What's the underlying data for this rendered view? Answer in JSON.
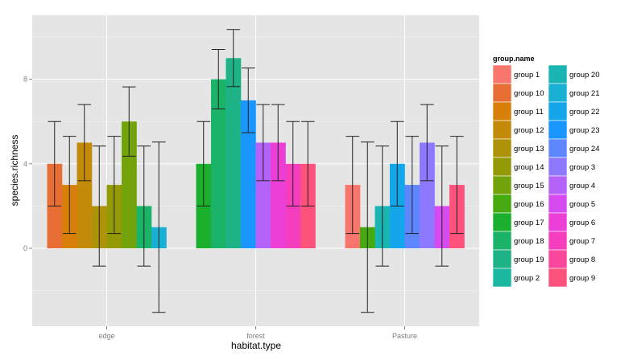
{
  "chart_data": {
    "type": "bar",
    "subtype": "dodged-bar-with-errorbars",
    "title": "",
    "xlabel": "habitat.type",
    "ylabel": "species.richness",
    "ylim": [
      -3.8,
      10.9
    ],
    "yticks": [
      0,
      4,
      8
    ],
    "ytick_labels": [
      "0",
      "4",
      "8"
    ],
    "categories": [
      "edge",
      "forest",
      "Pasture"
    ],
    "grid": true,
    "legend": {
      "title": "group.name",
      "position": "right",
      "entries": [
        {
          "label": "group 1",
          "color": "#F8766D"
        },
        {
          "label": "group 10",
          "color": "#E76F35"
        },
        {
          "label": "group 11",
          "color": "#D8800A"
        },
        {
          "label": "group 12",
          "color": "#C48A0A"
        },
        {
          "label": "group 13",
          "color": "#AE9207"
        },
        {
          "label": "group 14",
          "color": "#939A05"
        },
        {
          "label": "group 15",
          "color": "#72A30A"
        },
        {
          "label": "group 16",
          "color": "#44AA10"
        },
        {
          "label": "group 17",
          "color": "#1AB02E"
        },
        {
          "label": "group 18",
          "color": "#1BB367"
        },
        {
          "label": "group 19",
          "color": "#1EB387"
        },
        {
          "label": "group 2",
          "color": "#1AB8A0"
        },
        {
          "label": "group 20",
          "color": "#1AB5B3"
        },
        {
          "label": "group 21",
          "color": "#1AB0D4"
        },
        {
          "label": "group 22",
          "color": "#13A6EA"
        },
        {
          "label": "group 23",
          "color": "#1A96FF"
        },
        {
          "label": "group 24",
          "color": "#5E86FF"
        },
        {
          "label": "group 3",
          "color": "#8D78FF"
        },
        {
          "label": "group 4",
          "color": "#B562F8"
        },
        {
          "label": "group 5",
          "color": "#D54BF0"
        },
        {
          "label": "group 6",
          "color": "#EB3FD8"
        },
        {
          "label": "group 7",
          "color": "#F53EBD"
        },
        {
          "label": "group 8",
          "color": "#FB469D"
        },
        {
          "label": "group 9",
          "color": "#FD527B"
        }
      ]
    },
    "series": [
      {
        "category": "edge",
        "bars": [
          {
            "group": "group 10",
            "value": 4,
            "err_low": 2.0,
            "err_high": 6.0
          },
          {
            "group": "group 11",
            "value": 3,
            "err_low": 0.7,
            "err_high": 5.3
          },
          {
            "group": "group 12",
            "value": 5,
            "err_low": 3.2,
            "err_high": 6.8
          },
          {
            "group": "group 13",
            "value": 2,
            "err_low": -0.84,
            "err_high": 4.84
          },
          {
            "group": "group 14",
            "value": 3,
            "err_low": 0.7,
            "err_high": 5.3
          },
          {
            "group": "group 15",
            "value": 6,
            "err_low": 4.36,
            "err_high": 7.64
          },
          {
            "group": "group 18",
            "value": 2,
            "err_low": -0.84,
            "err_high": 4.84
          },
          {
            "group": "group 21",
            "value": 1,
            "err_low": -3.03,
            "err_high": 5.03
          }
        ]
      },
      {
        "category": "forest",
        "bars": [
          {
            "group": "group 17",
            "value": 4,
            "err_low": 2.0,
            "err_high": 6.0
          },
          {
            "group": "group 18",
            "value": 8,
            "err_low": 6.59,
            "err_high": 9.41
          },
          {
            "group": "group 19",
            "value": 9,
            "err_low": 7.65,
            "err_high": 10.35
          },
          {
            "group": "group 23",
            "value": 7,
            "err_low": 5.47,
            "err_high": 8.53
          },
          {
            "group": "group 4",
            "value": 5,
            "err_low": 3.2,
            "err_high": 6.8
          },
          {
            "group": "group 6",
            "value": 5,
            "err_low": 3.2,
            "err_high": 6.8
          },
          {
            "group": "group 7",
            "value": 4,
            "err_low": 2.0,
            "err_high": 6.0
          },
          {
            "group": "group 9",
            "value": 4,
            "err_low": 2.0,
            "err_high": 6.0
          }
        ]
      },
      {
        "category": "Pasture",
        "bars": [
          {
            "group": "group 1",
            "value": 3,
            "err_low": 0.7,
            "err_high": 5.3
          },
          {
            "group": "group 16",
            "value": 1,
            "err_low": -3.03,
            "err_high": 5.03
          },
          {
            "group": "group 20",
            "value": 2,
            "err_low": -0.84,
            "err_high": 4.84
          },
          {
            "group": "group 22",
            "value": 4,
            "err_low": 2.0,
            "err_high": 6.0
          },
          {
            "group": "group 24",
            "value": 3,
            "err_low": 0.7,
            "err_high": 5.3
          },
          {
            "group": "group 3",
            "value": 5,
            "err_low": 3.2,
            "err_high": 6.8
          },
          {
            "group": "group 5",
            "value": 2,
            "err_low": -0.84,
            "err_high": 4.84
          },
          {
            "group": "group 9",
            "value": 3,
            "err_low": 0.7,
            "err_high": 5.3
          }
        ]
      }
    ]
  }
}
